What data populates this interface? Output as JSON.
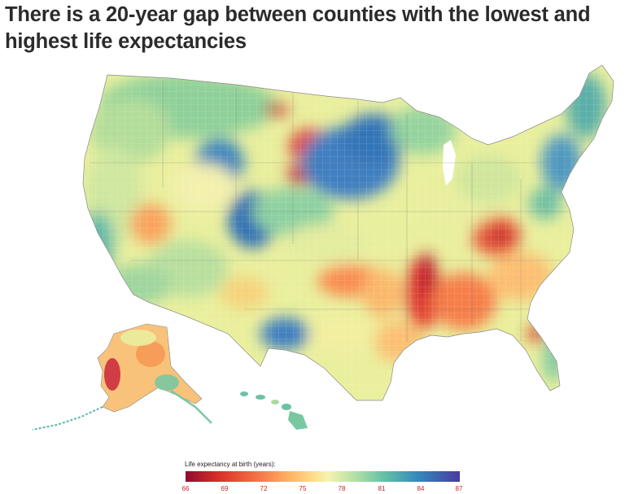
{
  "title": "There is a 20-year gap between counties with the lowest and highest life expectancies",
  "legend": {
    "title": "Life expectancy at birth (years):",
    "ticks": [
      "66",
      "69",
      "72",
      "75",
      "78",
      "81",
      "84",
      "87"
    ],
    "range": [
      66,
      87
    ],
    "colors": [
      "#8f0c2c",
      "#d7302a",
      "#f46d43",
      "#fdae61",
      "#fee08b",
      "#f4f3b0",
      "#abdda4",
      "#66c2a5",
      "#3288bd",
      "#4a3aa0"
    ]
  },
  "map": {
    "region": "United States counties",
    "insets": [
      "Alaska",
      "Hawaii"
    ],
    "variable": "Life expectancy at birth (years)"
  }
}
